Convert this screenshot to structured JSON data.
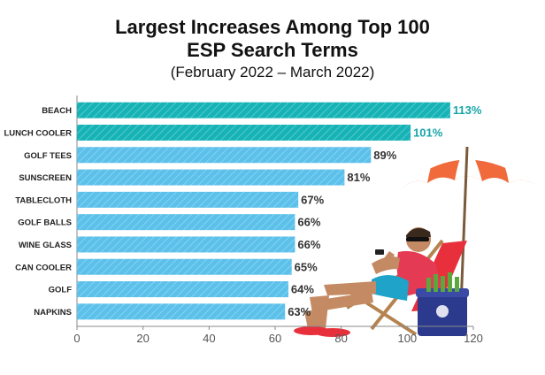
{
  "title_line1": "Largest Increases Among Top 100",
  "title_line2": "ESP Search Terms",
  "subtitle": "(February 2022 – March 2022)",
  "colors": {
    "highlight": "#16b3b6",
    "highlight_text": "#16a5a8",
    "normal": "#5bc0ea",
    "normal_text": "#333333",
    "axis": "#888888"
  },
  "chart_data": {
    "type": "bar",
    "orientation": "horizontal",
    "categories": [
      "BEACH",
      "LUNCH COOLER",
      "GOLF TEES",
      "SUNSCREEN",
      "TABLECLOTH",
      "GOLF BALLS",
      "WINE GLASS",
      "CAN COOLER",
      "GOLF",
      "NAPKINS"
    ],
    "values": [
      113,
      101,
      89,
      81,
      67,
      66,
      66,
      65,
      64,
      63
    ],
    "value_labels": [
      "113%",
      "101%",
      "89%",
      "81%",
      "67%",
      "66%",
      "66%",
      "65%",
      "64%",
      "63%"
    ],
    "highlighted": [
      true,
      true,
      false,
      false,
      false,
      false,
      false,
      false,
      false,
      false
    ],
    "xlim": [
      0,
      120
    ],
    "xticks": [
      "0",
      "20",
      "40",
      "60",
      "80",
      "100",
      "120"
    ],
    "grid": false,
    "xlabel": "",
    "ylabel": ""
  }
}
